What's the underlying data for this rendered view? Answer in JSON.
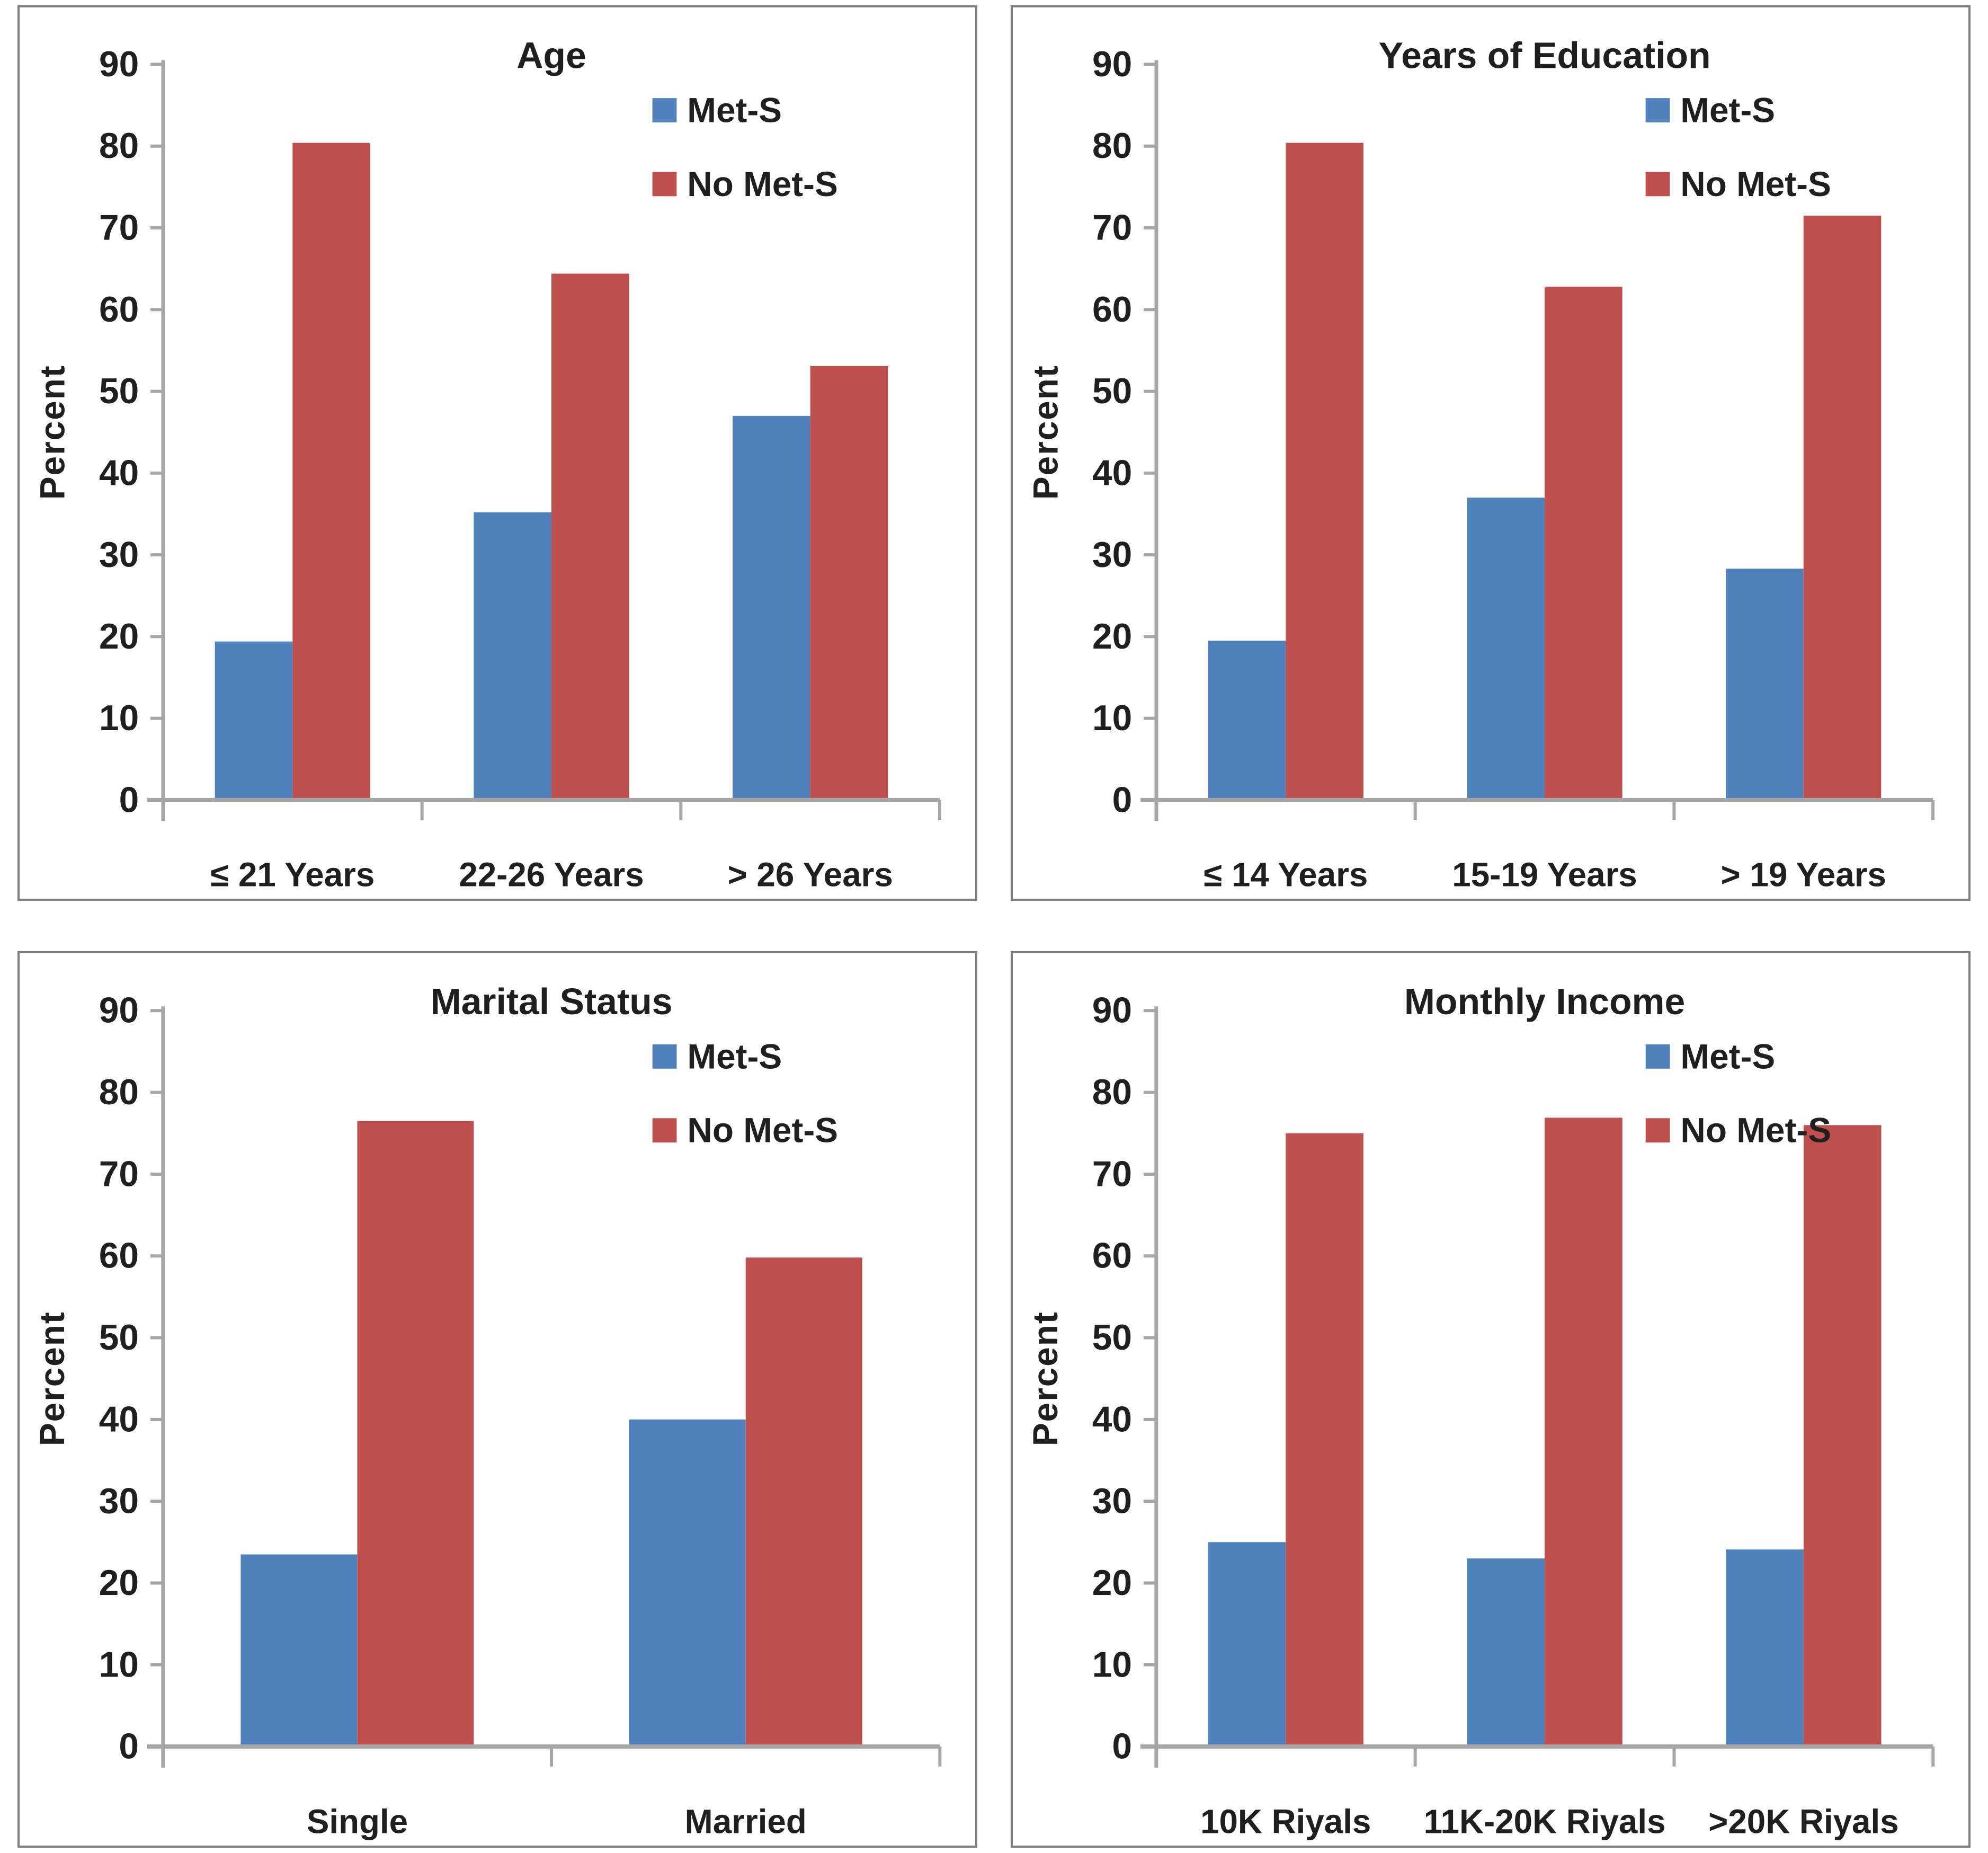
{
  "figure": {
    "background": "#ffffff",
    "panel_border_color": "#808080"
  },
  "styles": {
    "axis_color": "#a6a6a6",
    "text_color": "#1f1f1f",
    "met_s_color": "#4F81BD",
    "no_met_s_color": "#C0504D"
  },
  "chart_data": [
    {
      "type": "bar",
      "title": "Age",
      "ylabel": "Percent",
      "xlabel": "",
      "ylim": [
        0,
        90
      ],
      "ytick_step": 10,
      "yticks": [
        0,
        10,
        20,
        30,
        40,
        50,
        60,
        70,
        80,
        90
      ],
      "grid": false,
      "legend_position": "top-right",
      "categories": [
        "≤ 21 Years",
        "22-26 Years",
        "> 26 Years"
      ],
      "series": [
        {
          "name": "Met-S",
          "color": "#4F81BD",
          "values": [
            19.4,
            35.2,
            47.0
          ]
        },
        {
          "name": "No Met-S",
          "color": "#C0504D",
          "values": [
            80.4,
            64.4,
            53.1
          ]
        }
      ]
    },
    {
      "type": "bar",
      "title": "Years of Education",
      "ylabel": "Percent",
      "xlabel": "",
      "ylim": [
        0,
        90
      ],
      "ytick_step": 10,
      "yticks": [
        0,
        10,
        20,
        30,
        40,
        50,
        60,
        70,
        80,
        90
      ],
      "grid": false,
      "legend_position": "top-right",
      "categories": [
        "≤ 14 Years",
        "15-19 Years",
        "> 19 Years"
      ],
      "series": [
        {
          "name": "Met-S",
          "color": "#4F81BD",
          "values": [
            19.5,
            37.0,
            28.3
          ]
        },
        {
          "name": "No Met-S",
          "color": "#C0504D",
          "values": [
            80.4,
            62.8,
            71.5
          ]
        }
      ]
    },
    {
      "type": "bar",
      "title": "Marital Status",
      "ylabel": "Percent",
      "xlabel": "",
      "ylim": [
        0,
        90
      ],
      "ytick_step": 10,
      "yticks": [
        0,
        10,
        20,
        30,
        40,
        50,
        60,
        70,
        80,
        90
      ],
      "grid": false,
      "legend_position": "top-right",
      "categories": [
        "Single",
        "Married"
      ],
      "series": [
        {
          "name": "Met-S",
          "color": "#4F81BD",
          "values": [
            23.5,
            40.0
          ]
        },
        {
          "name": "No Met-S",
          "color": "#C0504D",
          "values": [
            76.5,
            59.8
          ]
        }
      ]
    },
    {
      "type": "bar",
      "title": "Monthly Income",
      "ylabel": "Percent",
      "xlabel": "",
      "ylim": [
        0,
        90
      ],
      "ytick_step": 10,
      "yticks": [
        0,
        10,
        20,
        30,
        40,
        50,
        60,
        70,
        80,
        90
      ],
      "grid": false,
      "legend_position": "top-right",
      "categories": [
        "10K Riyals",
        "11K-20K Riyals",
        ">20K Riyals"
      ],
      "series": [
        {
          "name": "Met-S",
          "color": "#4F81BD",
          "values": [
            25.0,
            23.0,
            24.1
          ]
        },
        {
          "name": "No Met-S",
          "color": "#C0504D",
          "values": [
            75.0,
            76.9,
            76.0
          ]
        }
      ]
    }
  ]
}
